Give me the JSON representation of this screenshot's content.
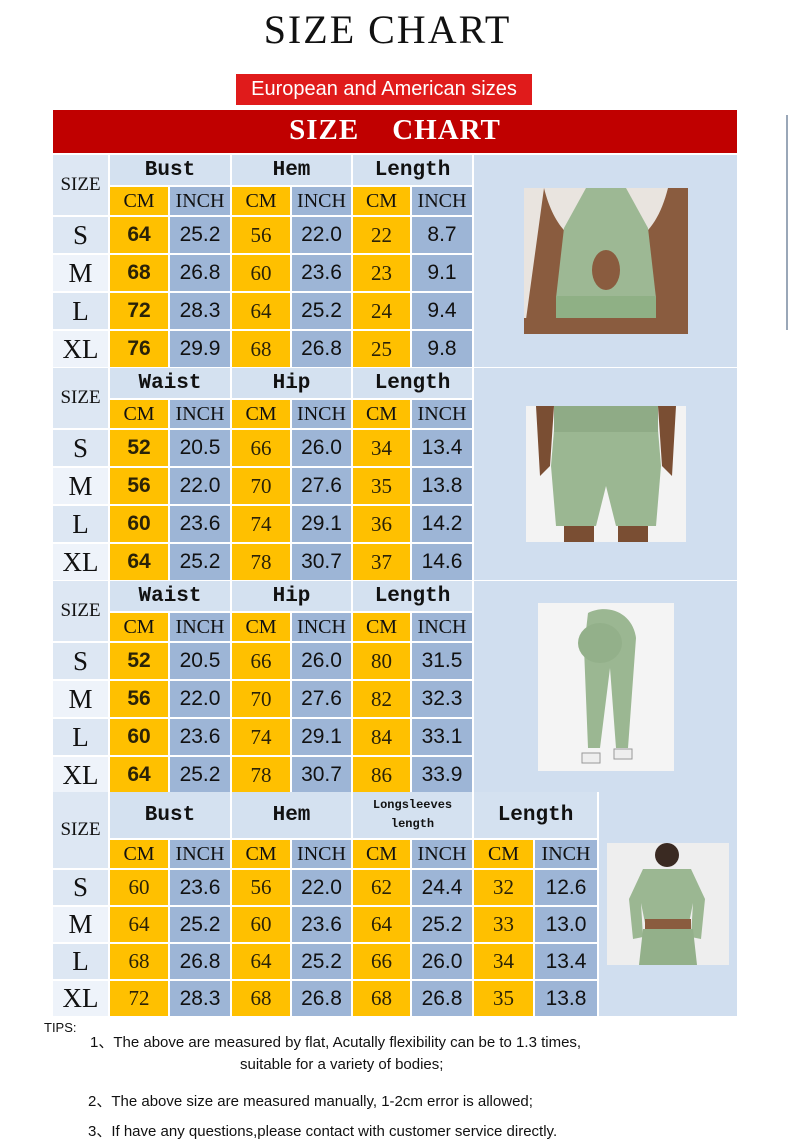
{
  "title": "SIZE CHART",
  "subtitle": "European and American sizes",
  "banner": "SIZE    CHART",
  "colors": {
    "cm": "#ffc000",
    "inch": "#9db5d6",
    "banner": "#c00000",
    "subtitle": "#e01b1b",
    "panel": "#d0deef"
  },
  "sections": [
    {
      "product": "sports-bra",
      "size_label": "SIZE",
      "groups": [
        "Bust",
        "Hem",
        "Length"
      ],
      "units": [
        "CM",
        "INCH"
      ],
      "rows": [
        {
          "size": "S",
          "values": [
            "64",
            "25.2",
            "56",
            "22.0",
            "22",
            "8.7"
          ]
        },
        {
          "size": "M",
          "values": [
            "68",
            "26.8",
            "60",
            "23.6",
            "23",
            "9.1"
          ]
        },
        {
          "size": "L",
          "values": [
            "72",
            "28.3",
            "64",
            "25.2",
            "24",
            "9.4"
          ]
        },
        {
          "size": "XL",
          "values": [
            "76",
            "29.9",
            "68",
            "26.8",
            "25",
            "9.8"
          ]
        }
      ]
    },
    {
      "product": "shorts",
      "size_label": "SIZE",
      "groups": [
        "Waist",
        "Hip",
        "Length"
      ],
      "units": [
        "CM",
        "INCH"
      ],
      "rows": [
        {
          "size": "S",
          "values": [
            "52",
            "20.5",
            "66",
            "26.0",
            "34",
            "13.4"
          ]
        },
        {
          "size": "M",
          "values": [
            "56",
            "22.0",
            "70",
            "27.6",
            "35",
            "13.8"
          ]
        },
        {
          "size": "L",
          "values": [
            "60",
            "23.6",
            "74",
            "29.1",
            "36",
            "14.2"
          ]
        },
        {
          "size": "XL",
          "values": [
            "64",
            "25.2",
            "78",
            "30.7",
            "37",
            "14.6"
          ]
        }
      ]
    },
    {
      "product": "leggings",
      "size_label": "SIZE",
      "groups": [
        "Waist",
        "Hip",
        "Length"
      ],
      "units": [
        "CM",
        "INCH"
      ],
      "rows": [
        {
          "size": "S",
          "values": [
            "52",
            "20.5",
            "66",
            "26.0",
            "80",
            "31.5"
          ]
        },
        {
          "size": "M",
          "values": [
            "56",
            "22.0",
            "70",
            "27.6",
            "82",
            "32.3"
          ]
        },
        {
          "size": "L",
          "values": [
            "60",
            "23.6",
            "74",
            "29.1",
            "84",
            "33.1"
          ]
        },
        {
          "size": "XL",
          "values": [
            "64",
            "25.2",
            "78",
            "30.7",
            "86",
            "33.9"
          ]
        }
      ]
    },
    {
      "product": "long-sleeve-top",
      "size_label": "SIZE",
      "groups": [
        "Bust",
        "Hem",
        "Longsleeves length",
        "Length"
      ],
      "units": [
        "CM",
        "INCH"
      ],
      "rows": [
        {
          "size": "S",
          "values": [
            "60",
            "23.6",
            "56",
            "22.0",
            "62",
            "24.4",
            "32",
            "12.6"
          ]
        },
        {
          "size": "M",
          "values": [
            "64",
            "25.2",
            "60",
            "23.6",
            "64",
            "25.2",
            "33",
            "13.0"
          ]
        },
        {
          "size": "L",
          "values": [
            "68",
            "26.8",
            "64",
            "25.2",
            "66",
            "26.0",
            "34",
            "13.4"
          ]
        },
        {
          "size": "XL",
          "values": [
            "72",
            "28.3",
            "68",
            "26.8",
            "68",
            "26.8",
            "35",
            "13.8"
          ]
        }
      ]
    }
  ],
  "tips": {
    "label": "TIPS:",
    "items": [
      "1、The above are measured by flat, Acutally  flexibility can be to 1.3 times,",
      "suitable for a variety of bodies;",
      "2、The above size are measured manually, 1-2cm error is allowed;",
      "3、If have any questions,please  contact with customer service directly."
    ]
  }
}
